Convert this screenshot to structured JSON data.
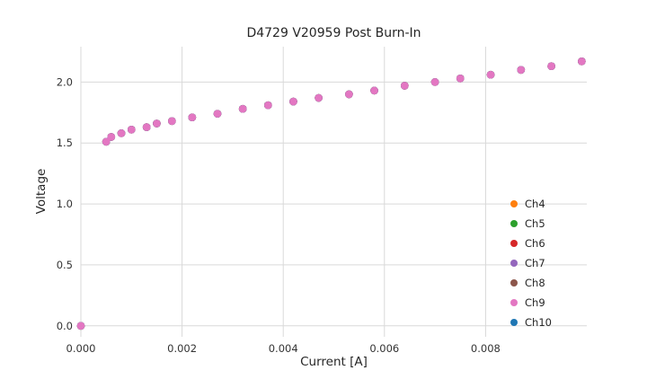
{
  "chart_data": {
    "type": "scatter",
    "title": "D4729 V20959 Post Burn-In",
    "xlabel": "Current [A]",
    "ylabel": "Voltage",
    "xlim": [
      0,
      0.01
    ],
    "ylim": [
      -0.09,
      2.29
    ],
    "x_tick_values": [
      0,
      0.002,
      0.004,
      0.006,
      0.008
    ],
    "x_tick_labels": [
      "0.000",
      "0.002",
      "0.004",
      "0.006",
      "0.008"
    ],
    "y_tick_values": [
      0,
      0.5,
      1.0,
      1.5,
      2.0
    ],
    "y_tick_labels": [
      "0.0",
      "0.5",
      "1.0",
      "1.5",
      "2.0"
    ],
    "grid": true,
    "grid_color": "#d9d9d9",
    "text_color": "#262626",
    "tick_color": "#333333",
    "legend_position": "lower right",
    "marker": "circle",
    "series_overlap_note": "all channels overlap; Ch9 (pink) drawn on top",
    "x": [
      0.0,
      0.0005,
      0.0006,
      0.0008,
      0.001,
      0.0013,
      0.0015,
      0.0018,
      0.0022,
      0.0027,
      0.0032,
      0.0037,
      0.0042,
      0.0047,
      0.0053,
      0.0058,
      0.0064,
      0.007,
      0.0075,
      0.0081,
      0.0087,
      0.0093,
      0.0099
    ],
    "series": [
      {
        "name": "Ch4",
        "color": "#ff7f0e",
        "values": [
          0.0,
          1.51,
          1.55,
          1.58,
          1.61,
          1.63,
          1.66,
          1.68,
          1.71,
          1.74,
          1.78,
          1.81,
          1.84,
          1.87,
          1.9,
          1.93,
          1.97,
          2.0,
          2.03,
          2.06,
          2.1,
          2.13,
          2.17
        ]
      },
      {
        "name": "Ch5",
        "color": "#2ca02c",
        "values": [
          0.0,
          1.51,
          1.55,
          1.58,
          1.61,
          1.63,
          1.66,
          1.68,
          1.71,
          1.74,
          1.78,
          1.81,
          1.84,
          1.87,
          1.9,
          1.93,
          1.97,
          2.0,
          2.03,
          2.06,
          2.1,
          2.13,
          2.17
        ]
      },
      {
        "name": "Ch6",
        "color": "#d62728",
        "values": [
          0.0,
          1.51,
          1.55,
          1.58,
          1.61,
          1.63,
          1.66,
          1.68,
          1.71,
          1.74,
          1.78,
          1.81,
          1.84,
          1.87,
          1.9,
          1.93,
          1.97,
          2.0,
          2.03,
          2.06,
          2.1,
          2.13,
          2.17
        ]
      },
      {
        "name": "Ch7",
        "color": "#9467bd",
        "values": [
          0.0,
          1.51,
          1.55,
          1.58,
          1.61,
          1.63,
          1.66,
          1.68,
          1.71,
          1.74,
          1.78,
          1.81,
          1.84,
          1.87,
          1.9,
          1.93,
          1.97,
          2.0,
          2.03,
          2.06,
          2.1,
          2.13,
          2.17
        ]
      },
      {
        "name": "Ch8",
        "color": "#8c564b",
        "values": [
          0.0,
          1.51,
          1.55,
          1.58,
          1.61,
          1.63,
          1.66,
          1.68,
          1.71,
          1.74,
          1.78,
          1.81,
          1.84,
          1.87,
          1.9,
          1.93,
          1.97,
          2.0,
          2.03,
          2.06,
          2.1,
          2.13,
          2.17
        ]
      },
      {
        "name": "Ch9",
        "color": "#e377c2",
        "values": [
          0.0,
          1.51,
          1.55,
          1.58,
          1.61,
          1.63,
          1.66,
          1.68,
          1.71,
          1.74,
          1.78,
          1.81,
          1.84,
          1.87,
          1.9,
          1.93,
          1.97,
          2.0,
          2.03,
          2.06,
          2.1,
          2.13,
          2.17
        ]
      },
      {
        "name": "Ch10",
        "color": "#1f77b4",
        "values": [
          0.0,
          1.51,
          1.55,
          1.58,
          1.61,
          1.63,
          1.66,
          1.68,
          1.71,
          1.74,
          1.78,
          1.81,
          1.84,
          1.87,
          1.9,
          1.93,
          1.97,
          2.0,
          2.03,
          2.06,
          2.1,
          2.13,
          2.17
        ]
      }
    ],
    "draw_order": [
      "Ch4",
      "Ch5",
      "Ch6",
      "Ch7",
      "Ch8",
      "Ch10",
      "Ch9"
    ]
  }
}
